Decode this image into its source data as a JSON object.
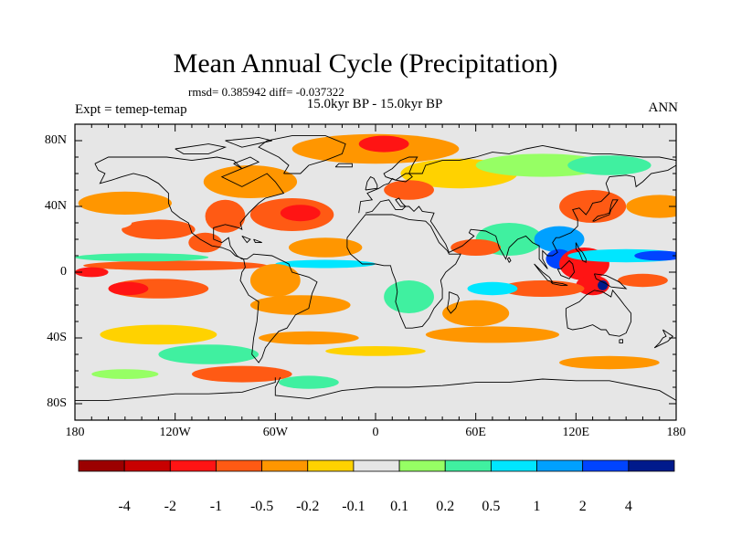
{
  "chart_data": {
    "type": "heatmap",
    "title": "Mean Annual Cycle (Precipitation)",
    "stats": "rmsd= 0.385942 diff= -0.037322",
    "period": "15.0kyr BP - 15.0kyr BP",
    "experiment": "Expt = temep-temap",
    "season": "ANN",
    "x_axis": {
      "range": [
        -180,
        180
      ],
      "ticks": [
        -180,
        -120,
        -60,
        0,
        60,
        120,
        180
      ],
      "tick_labels": [
        "180",
        "120W",
        "60W",
        "0",
        "60E",
        "120E",
        "180"
      ]
    },
    "y_axis": {
      "range": [
        -90,
        90
      ],
      "ticks": [
        80,
        40,
        0,
        -40,
        -80
      ],
      "tick_labels": [
        "80N",
        "40N",
        "0",
        "40S",
        "80S"
      ]
    },
    "colorbar": {
      "levels": [
        -4,
        -2,
        -1,
        -0.5,
        -0.2,
        -0.1,
        0.1,
        0.2,
        0.5,
        1,
        2,
        4
      ],
      "labels": [
        "-4",
        "-2",
        "-1",
        "-0.5",
        "-0.2",
        "-0.1",
        "0.1",
        "0.2",
        "0.5",
        "1",
        "2",
        "4"
      ],
      "colors": [
        "#9b0000",
        "#c80000",
        "#ff1414",
        "#ff5a14",
        "#ff9600",
        "#ffd200",
        "#e6e6e6",
        "#96ff64",
        "#40f0a0",
        "#00e6ff",
        "#00a0ff",
        "#0044ff",
        "#001a8c"
      ]
    },
    "anomaly_blobs": [
      {
        "lon": -150,
        "lat": 42,
        "rx": 28,
        "ry": 7,
        "level": 4
      },
      {
        "lon": -130,
        "lat": 26,
        "rx": 22,
        "ry": 6,
        "level": 3
      },
      {
        "lon": -160,
        "lat": 30,
        "rx": 14,
        "ry": 4,
        "level": 6
      },
      {
        "lon": -120,
        "lat": 4,
        "rx": 55,
        "ry": 3,
        "level": 3
      },
      {
        "lon": -140,
        "lat": 9,
        "rx": 40,
        "ry": 2.5,
        "level": 8
      },
      {
        "lon": -130,
        "lat": -10,
        "rx": 30,
        "ry": 6,
        "level": 3
      },
      {
        "lon": -148,
        "lat": -10,
        "rx": 12,
        "ry": 4,
        "level": 2
      },
      {
        "lon": -90,
        "lat": 34,
        "rx": 12,
        "ry": 10,
        "level": 3
      },
      {
        "lon": -102,
        "lat": 18,
        "rx": 10,
        "ry": 6,
        "level": 3
      },
      {
        "lon": -75,
        "lat": 55,
        "rx": 28,
        "ry": 10,
        "level": 4
      },
      {
        "lon": -50,
        "lat": 35,
        "rx": 25,
        "ry": 10,
        "level": 3
      },
      {
        "lon": -45,
        "lat": 36,
        "rx": 12,
        "ry": 5,
        "level": 2
      },
      {
        "lon": -30,
        "lat": 15,
        "rx": 22,
        "ry": 6,
        "level": 4
      },
      {
        "lon": -30,
        "lat": 5,
        "rx": 30,
        "ry": 2.5,
        "level": 9
      },
      {
        "lon": -60,
        "lat": -5,
        "rx": 15,
        "ry": 10,
        "level": 4
      },
      {
        "lon": -45,
        "lat": -20,
        "rx": 30,
        "ry": 6,
        "level": 4
      },
      {
        "lon": 0,
        "lat": 75,
        "rx": 50,
        "ry": 9,
        "level": 4
      },
      {
        "lon": 5,
        "lat": 78,
        "rx": 15,
        "ry": 5,
        "level": 2
      },
      {
        "lon": 50,
        "lat": 60,
        "rx": 35,
        "ry": 9,
        "level": 5
      },
      {
        "lon": 20,
        "lat": 50,
        "rx": 15,
        "ry": 6,
        "level": 3
      },
      {
        "lon": 100,
        "lat": 65,
        "rx": 40,
        "ry": 7,
        "level": 7
      },
      {
        "lon": 140,
        "lat": 65,
        "rx": 25,
        "ry": 6,
        "level": 8
      },
      {
        "lon": 130,
        "lat": 40,
        "rx": 20,
        "ry": 10,
        "level": 3
      },
      {
        "lon": 170,
        "lat": 40,
        "rx": 20,
        "ry": 7,
        "level": 4
      },
      {
        "lon": 80,
        "lat": 20,
        "rx": 20,
        "ry": 10,
        "level": 8
      },
      {
        "lon": 60,
        "lat": 15,
        "rx": 15,
        "ry": 5,
        "level": 3
      },
      {
        "lon": 110,
        "lat": 20,
        "rx": 15,
        "ry": 8,
        "level": 10
      },
      {
        "lon": 110,
        "lat": 8,
        "rx": 8,
        "ry": 6,
        "level": 11
      },
      {
        "lon": 125,
        "lat": 5,
        "rx": 15,
        "ry": 10,
        "level": 2
      },
      {
        "lon": 150,
        "lat": 10,
        "rx": 35,
        "ry": 4,
        "level": 9
      },
      {
        "lon": 170,
        "lat": 10,
        "rx": 15,
        "ry": 3,
        "level": 11
      },
      {
        "lon": 130,
        "lat": -8,
        "rx": 10,
        "ry": 6,
        "level": 2
      },
      {
        "lon": 136,
        "lat": -8,
        "rx": 3,
        "ry": 3,
        "level": 12
      },
      {
        "lon": 100,
        "lat": -10,
        "rx": 25,
        "ry": 5,
        "level": 3
      },
      {
        "lon": 60,
        "lat": -25,
        "rx": 20,
        "ry": 8,
        "level": 4
      },
      {
        "lon": 70,
        "lat": -10,
        "rx": 15,
        "ry": 4,
        "level": 9
      },
      {
        "lon": 20,
        "lat": -15,
        "rx": 15,
        "ry": 10,
        "level": 8
      },
      {
        "lon": -130,
        "lat": -38,
        "rx": 35,
        "ry": 6,
        "level": 5
      },
      {
        "lon": -100,
        "lat": -50,
        "rx": 30,
        "ry": 6,
        "level": 8
      },
      {
        "lon": -40,
        "lat": -40,
        "rx": 30,
        "ry": 4,
        "level": 4
      },
      {
        "lon": 0,
        "lat": -48,
        "rx": 30,
        "ry": 3,
        "level": 5
      },
      {
        "lon": 70,
        "lat": -38,
        "rx": 40,
        "ry": 5,
        "level": 4
      },
      {
        "lon": 140,
        "lat": -55,
        "rx": 30,
        "ry": 4,
        "level": 4
      },
      {
        "lon": -80,
        "lat": -62,
        "rx": 30,
        "ry": 5,
        "level": 3
      },
      {
        "lon": -150,
        "lat": -62,
        "rx": 20,
        "ry": 3,
        "level": 7
      },
      {
        "lon": -40,
        "lat": -67,
        "rx": 18,
        "ry": 4,
        "level": 8
      },
      {
        "lon": -170,
        "lat": 0,
        "rx": 10,
        "ry": 3,
        "level": 2
      },
      {
        "lon": 160,
        "lat": -5,
        "rx": 15,
        "ry": 4,
        "level": 3
      }
    ]
  }
}
